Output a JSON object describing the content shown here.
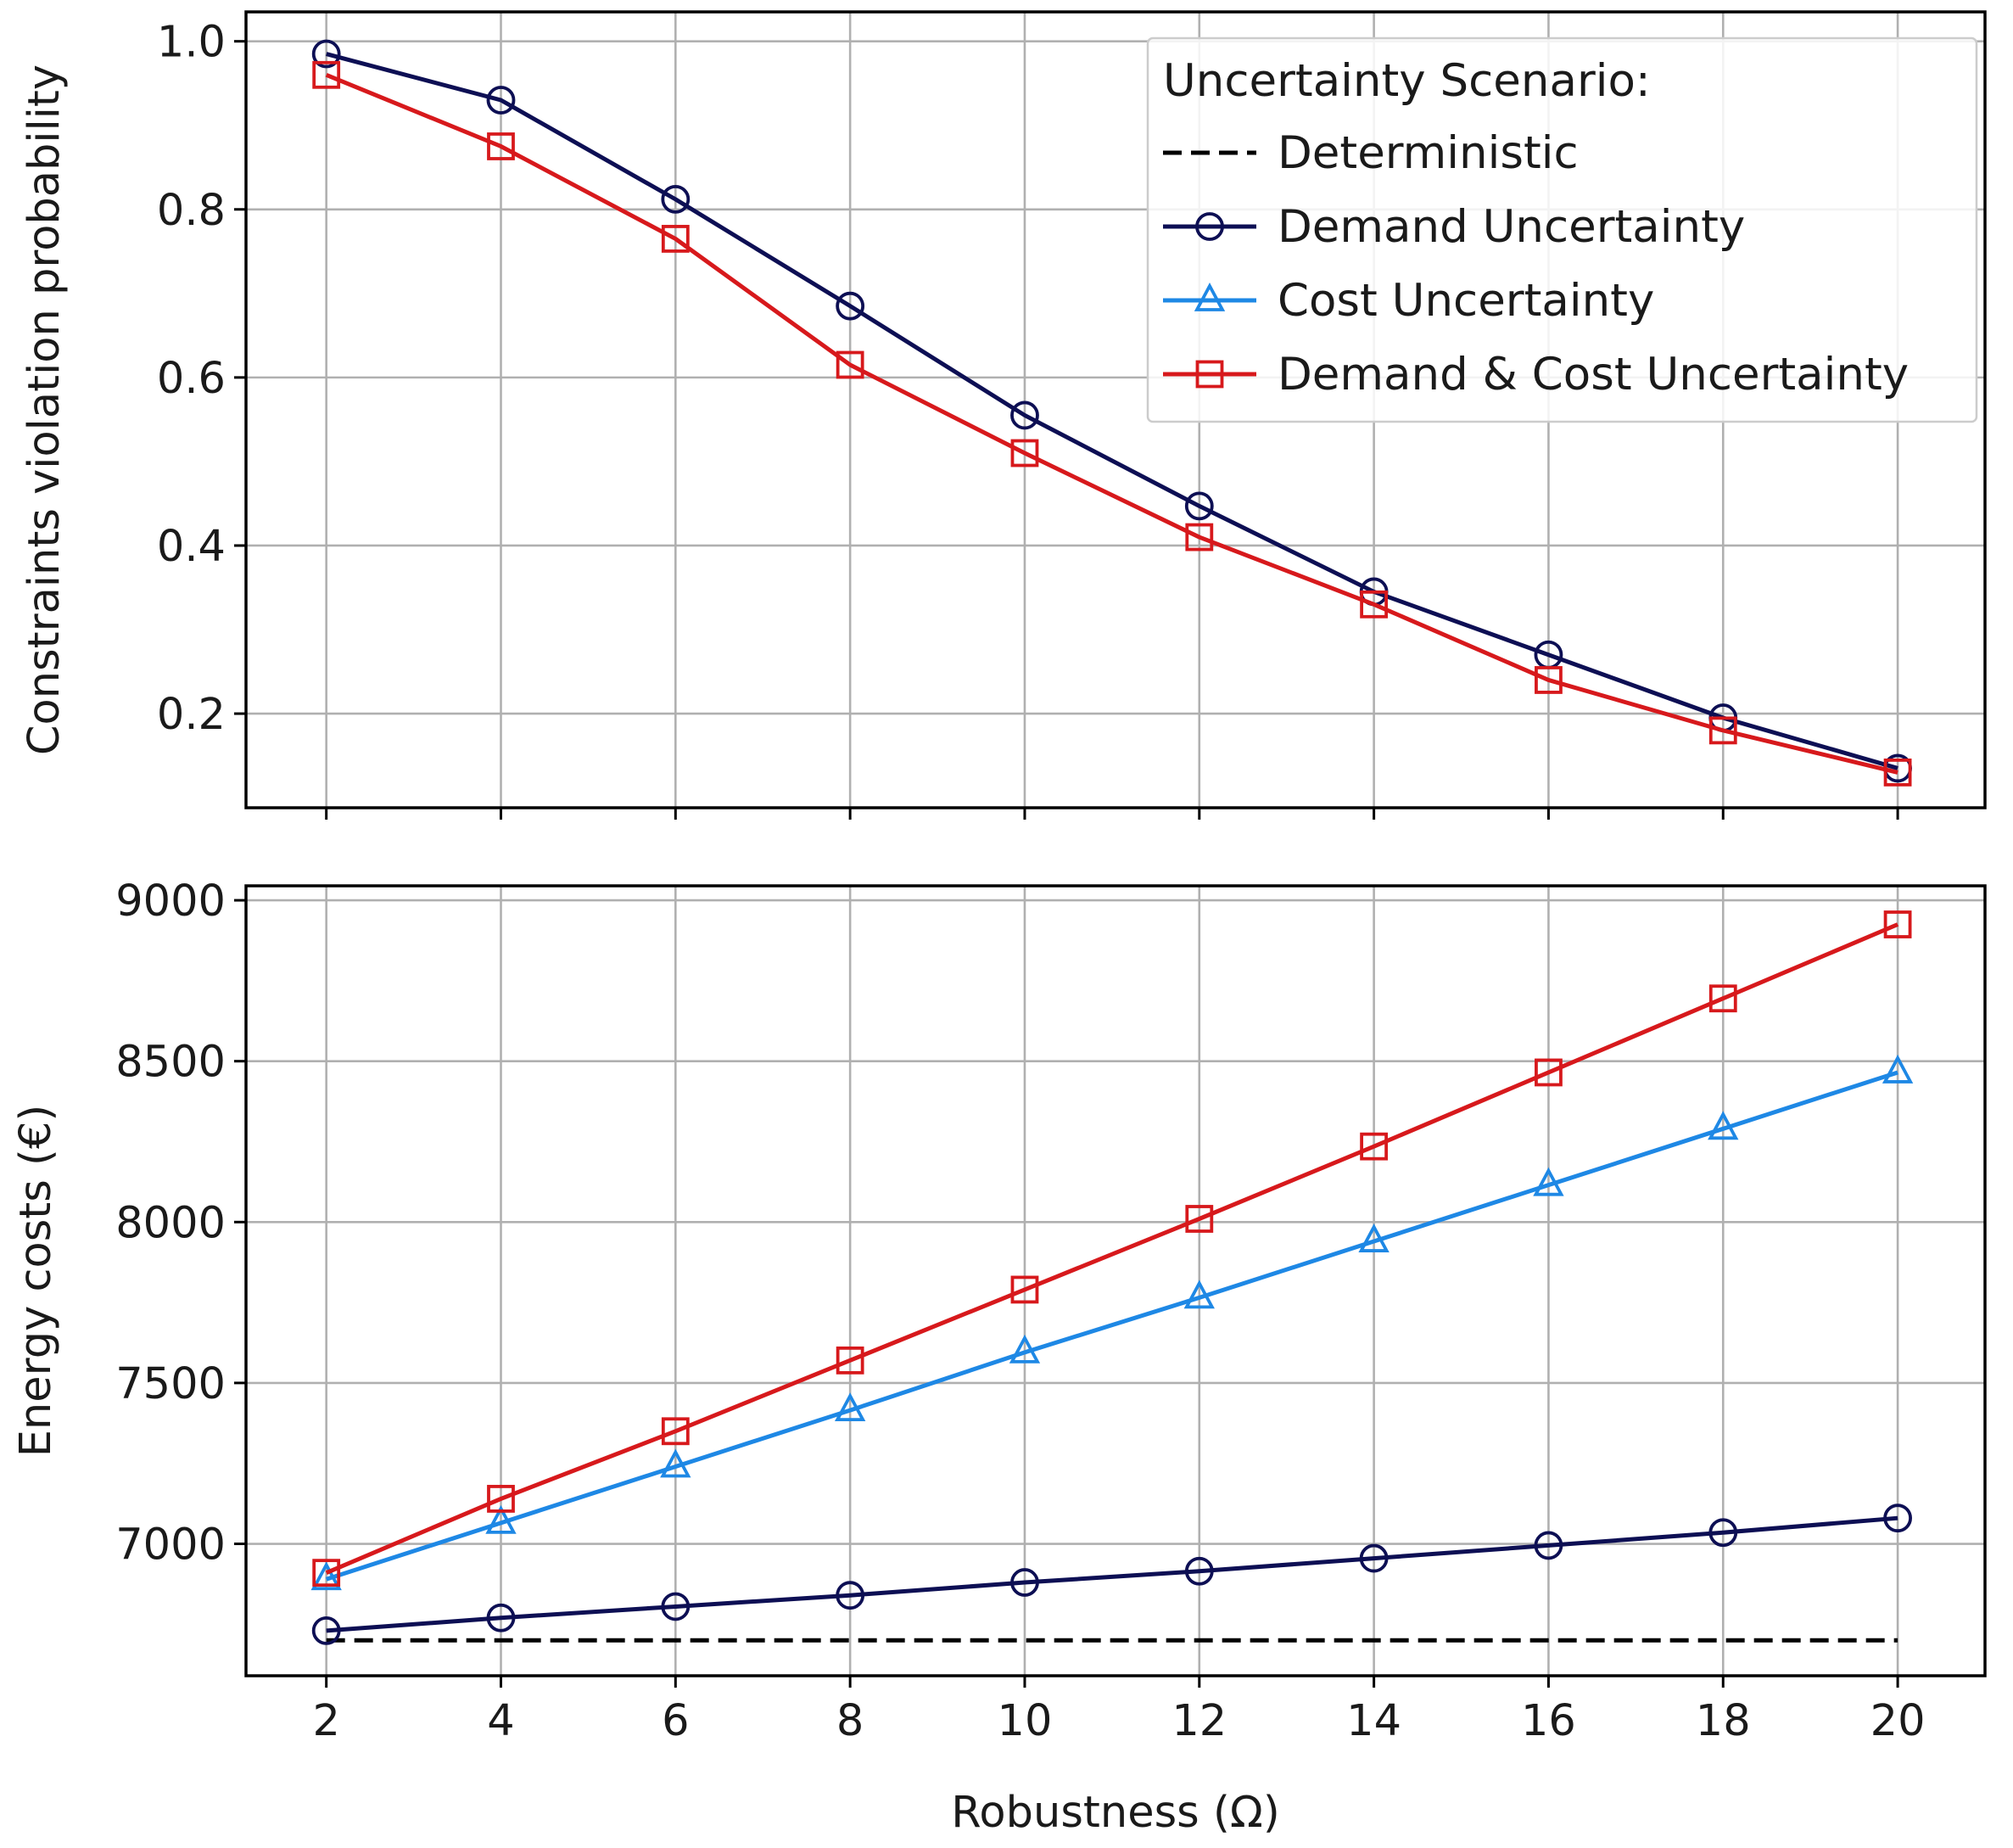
{
  "chart_data": [
    {
      "type": "line",
      "ylabel": "Constraints violation probability",
      "xlabel": "",
      "xlim": [
        1.08,
        21.0
      ],
      "ylim": [
        0.088,
        1.035
      ],
      "xticks": [
        2,
        4,
        6,
        8,
        10,
        12,
        14,
        16,
        18,
        20
      ],
      "yticks": [
        0.2,
        0.4,
        0.6,
        0.8,
        1.0
      ],
      "ytick_labels": [
        "0.2",
        "0.4",
        "0.6",
        "0.8",
        "1.0"
      ],
      "grid": true,
      "x": [
        2,
        4,
        6,
        8,
        10,
        12,
        14,
        16,
        18,
        20
      ],
      "series": [
        {
          "name": "Demand Uncertainty",
          "color": "#0d0f54",
          "marker": "circle",
          "line_style": "solid",
          "values": [
            0.985,
            0.93,
            0.812,
            0.685,
            0.555,
            0.447,
            0.345,
            0.27,
            0.195,
            0.135
          ]
        },
        {
          "name": "Demand & Cost Uncertainty",
          "color": "#d7191c",
          "marker": "square",
          "line_style": "solid",
          "values": [
            0.96,
            0.875,
            0.765,
            0.615,
            0.51,
            0.41,
            0.33,
            0.24,
            0.18,
            0.13
          ]
        }
      ],
      "legend": {
        "title": "Uncertainty Scenario:",
        "position": "top-right",
        "entries": [
          {
            "label": "Deterministic",
            "color": "#000000",
            "marker": "none",
            "line_style": "dashed"
          },
          {
            "label": "Demand Uncertainty",
            "color": "#0d0f54",
            "marker": "circle",
            "line_style": "solid"
          },
          {
            "label": "Cost Uncertainty",
            "color": "#1e88e5",
            "marker": "triangle",
            "line_style": "solid"
          },
          {
            "label": "Demand & Cost Uncertainty",
            "color": "#d7191c",
            "marker": "square",
            "line_style": "solid"
          }
        ]
      }
    },
    {
      "type": "line",
      "ylabel": "Energy costs (€)",
      "xlabel": "Robustness (Ω)",
      "xlim": [
        1.08,
        21.0
      ],
      "ylim": [
        6590,
        9045
      ],
      "xticks": [
        2,
        4,
        6,
        8,
        10,
        12,
        14,
        16,
        18,
        20
      ],
      "xtick_labels": [
        "2",
        "4",
        "6",
        "8",
        "10",
        "12",
        "14",
        "16",
        "18",
        "20"
      ],
      "yticks": [
        7000,
        7500,
        8000,
        8500,
        9000
      ],
      "ytick_labels": [
        "7000",
        "7500",
        "8000",
        "8500",
        "9000"
      ],
      "grid": true,
      "x": [
        2,
        4,
        6,
        8,
        10,
        12,
        14,
        16,
        18,
        20
      ],
      "series": [
        {
          "name": "Deterministic",
          "color": "#000000",
          "marker": "none",
          "line_style": "dashed",
          "values": [
            6700,
            6700,
            6700,
            6700,
            6700,
            6700,
            6700,
            6700,
            6700,
            6700
          ]
        },
        {
          "name": "Demand Uncertainty",
          "color": "#0d0f54",
          "marker": "circle",
          "line_style": "solid",
          "values": [
            6730,
            6770,
            6805,
            6840,
            6880,
            6915,
            6955,
            6995,
            7035,
            7080
          ]
        },
        {
          "name": "Cost Uncertainty",
          "color": "#1e88e5",
          "marker": "triangle",
          "line_style": "solid",
          "values": [
            6890,
            7065,
            7240,
            7415,
            7595,
            7765,
            7940,
            8115,
            8290,
            8465
          ]
        },
        {
          "name": "Demand & Cost Uncertainty",
          "color": "#d7191c",
          "marker": "square",
          "line_style": "solid",
          "values": [
            6910,
            7140,
            7350,
            7570,
            7790,
            8010,
            8235,
            8465,
            8695,
            8925
          ]
        }
      ]
    }
  ]
}
